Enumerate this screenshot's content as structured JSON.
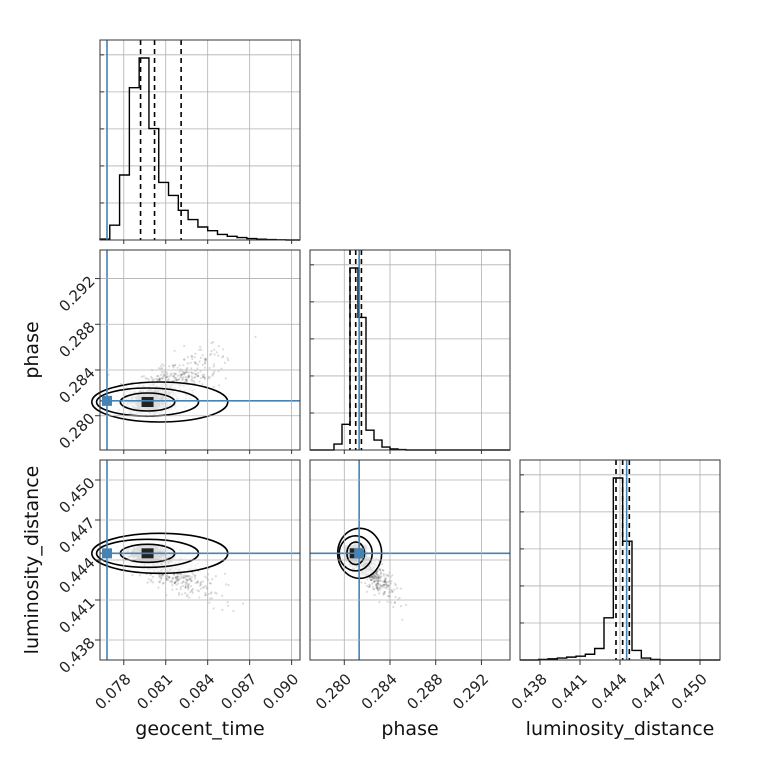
{
  "chart_data": {
    "type": "corner",
    "parameters": [
      "geocent_time",
      "phase",
      "luminosity_distance"
    ],
    "axis_labels": {
      "geocent_time": "geocent_time",
      "phase": "phase",
      "luminosity_distance": "luminosity_distance"
    },
    "ticks": {
      "geocent_time": [
        "0.078",
        "0.081",
        "0.084",
        "0.087",
        "0.090"
      ],
      "phase": [
        "0.280",
        "0.284",
        "0.288",
        "0.292"
      ],
      "luminosity_distance": [
        "0.438",
        "0.441",
        "0.444",
        "0.447",
        "0.450"
      ]
    },
    "ranges": {
      "geocent_time": [
        0.0763,
        0.0906
      ],
      "phase": [
        0.277,
        0.2945
      ],
      "luminosity_distance": [
        0.4365,
        0.4515
      ]
    },
    "injection": {
      "geocent_time": 0.0768,
      "phase": 0.2813,
      "luminosity_distance": 0.4445
    },
    "quantiles": {
      "geocent_time": [
        0.0792,
        0.0802,
        0.0821
      ],
      "phase": [
        0.2805,
        0.281,
        0.2815
      ],
      "luminosity_distance": [
        0.4437,
        0.4442,
        0.4447
      ]
    },
    "histograms": {
      "geocent_time": {
        "edges": [
          0.0763,
          0.077,
          0.0777,
          0.0784,
          0.0791,
          0.0798,
          0.0805,
          0.0812,
          0.0819,
          0.0826,
          0.0833,
          0.084,
          0.0847,
          0.0854,
          0.0861,
          0.0868,
          0.0875,
          0.0882,
          0.0889,
          0.0896,
          0.0903,
          0.0906
        ],
        "counts": [
          0.5,
          8,
          35,
          82,
          98,
          60,
          31,
          24,
          16,
          11,
          7,
          5,
          3,
          2,
          1.3,
          0.8,
          0.4,
          0.2,
          0.1,
          0,
          0
        ]
      },
      "phase": {
        "edges": [
          0.277,
          0.2777,
          0.2784,
          0.2791,
          0.2798,
          0.2805,
          0.2812,
          0.2819,
          0.2826,
          0.2833,
          0.284,
          0.2847,
          0.2854,
          0.2861,
          0.2868,
          0.2875,
          0.2882,
          0.2889,
          0.2896,
          0.2903,
          0.291,
          0.2945
        ],
        "counts": [
          0,
          0,
          0,
          3,
          13,
          92,
          67,
          10,
          5,
          1.5,
          0.5,
          0.2,
          0,
          0,
          0,
          0,
          0,
          0,
          0,
          0,
          0
        ]
      },
      "luminosity_distance": {
        "edges": [
          0.4365,
          0.4372,
          0.4379,
          0.4386,
          0.4393,
          0.44,
          0.4407,
          0.4414,
          0.4421,
          0.4428,
          0.4435,
          0.4442,
          0.4449,
          0.4456,
          0.4463,
          0.447,
          0.4477,
          0.4484,
          0.4491,
          0.4498,
          0.4505,
          0.4515
        ],
        "counts": [
          0,
          0,
          0.3,
          0.6,
          1,
          1.5,
          2,
          3,
          6,
          22,
          95,
          62,
          5,
          1,
          0.3,
          0,
          0,
          0,
          0,
          0,
          0
        ]
      }
    },
    "scatter_2d": {
      "phase_vs_geocent_time": {
        "x": "geocent_time",
        "y": "phase",
        "center": [
          0.0797,
          0.2812
        ],
        "spread": [
          0.0016,
          0.0012
        ],
        "tail": [
          0.004,
          0.0035
        ]
      },
      "luminosity_distance_vs_geocent_time": {
        "x": "geocent_time",
        "y": "luminosity_distance",
        "center": [
          0.0797,
          0.4445
        ],
        "spread": [
          0.0016,
          0.0006
        ],
        "tail": [
          0.004,
          -0.003
        ]
      },
      "luminosity_distance_vs_phase": {
        "x": "phase",
        "y": "luminosity_distance",
        "center": [
          0.281,
          0.4445
        ],
        "spread": [
          0.0008,
          0.0007
        ],
        "tail": [
          0.003,
          -0.003
        ]
      }
    },
    "grid": true,
    "colors": {
      "injection": "#4682b4",
      "histogram": "#000000",
      "points": "#000000",
      "grid": "#b0b0b0"
    }
  }
}
